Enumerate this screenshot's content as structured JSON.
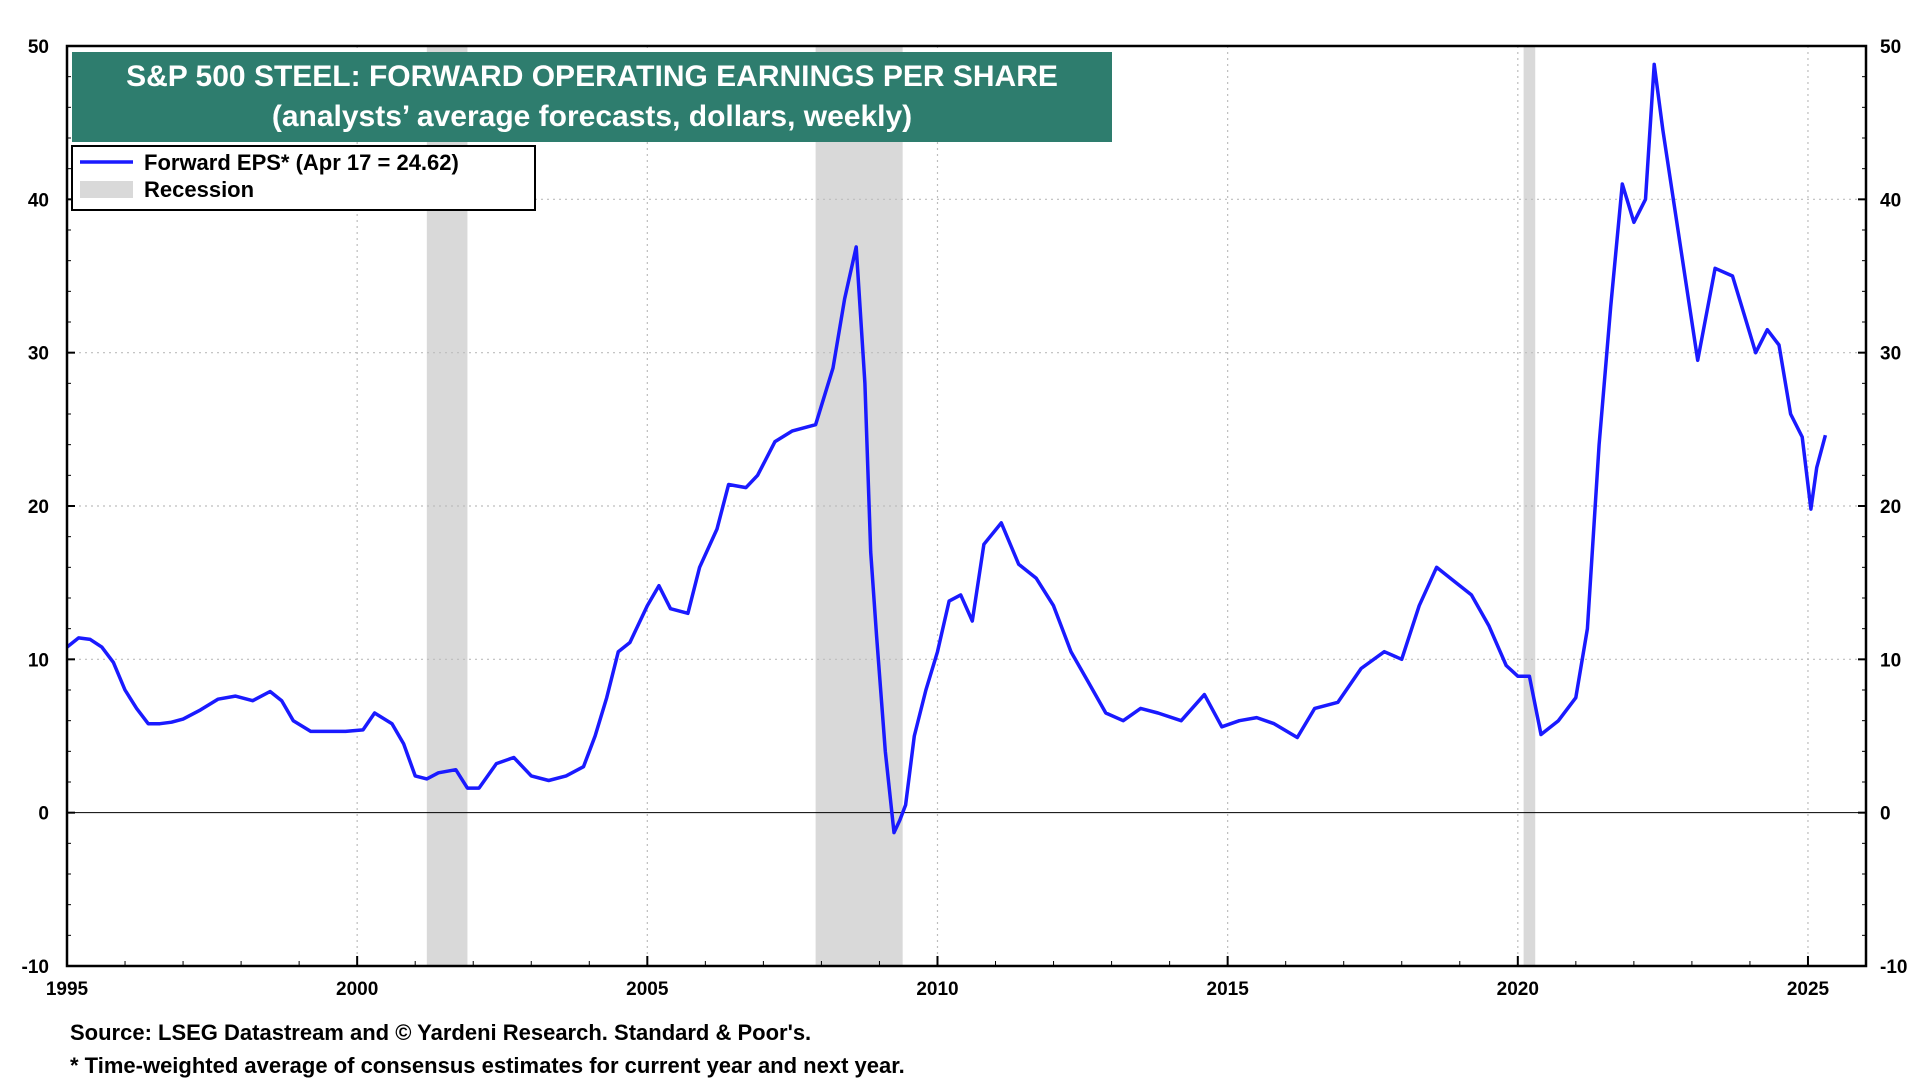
{
  "chart_data": {
    "type": "line",
    "title": "S&P 500 STEEL: FORWARD OPERATING EARNINGS PER SHARE",
    "subtitle": "(analysts’ average forecasts, dollars, weekly)",
    "xlabel": "",
    "ylabel": "",
    "xlim": [
      1995,
      2026
    ],
    "ylim": [
      -10,
      50
    ],
    "x_ticks": [
      "1995",
      "2000",
      "2005",
      "2010",
      "2015",
      "2020",
      "2025"
    ],
    "y_ticks": [
      "-10",
      "0",
      "10",
      "20",
      "30",
      "40",
      "50"
    ],
    "grid": true,
    "legend_position": "top-left",
    "colors": {
      "series": "#1a1aff",
      "recession": "#d9d9d9",
      "title_bg": "#2e7d6e"
    },
    "series": [
      {
        "name": "Forward EPS* (Apr 17 = 24.62)",
        "x": [
          1995.0,
          1995.2,
          1995.4,
          1995.6,
          1995.8,
          1996.0,
          1996.2,
          1996.4,
          1996.6,
          1996.8,
          1997.0,
          1997.3,
          1997.6,
          1997.9,
          1998.2,
          1998.5,
          1998.7,
          1998.9,
          1999.2,
          1999.5,
          1999.8,
          2000.1,
          2000.3,
          2000.6,
          2000.8,
          2001.0,
          2001.2,
          2001.4,
          2001.7,
          2001.9,
          2002.1,
          2002.4,
          2002.7,
          2003.0,
          2003.3,
          2003.6,
          2003.9,
          2004.1,
          2004.3,
          2004.5,
          2004.7,
          2005.0,
          2005.2,
          2005.4,
          2005.7,
          2005.9,
          2006.2,
          2006.4,
          2006.7,
          2006.9,
          2007.2,
          2007.5,
          2007.9,
          2008.2,
          2008.4,
          2008.6,
          2008.75,
          2008.85,
          2008.95,
          2009.1,
          2009.25,
          2009.35,
          2009.45,
          2009.6,
          2009.8,
          2010.0,
          2010.2,
          2010.4,
          2010.6,
          2010.8,
          2011.1,
          2011.4,
          2011.7,
          2012.0,
          2012.3,
          2012.6,
          2012.9,
          2013.2,
          2013.5,
          2013.8,
          2014.2,
          2014.6,
          2014.9,
          2015.2,
          2015.5,
          2015.8,
          2016.2,
          2016.5,
          2016.9,
          2017.3,
          2017.7,
          2018.0,
          2018.3,
          2018.6,
          2018.9,
          2019.2,
          2019.5,
          2019.8,
          2020.0,
          2020.2,
          2020.4,
          2020.7,
          2021.0,
          2021.2,
          2021.4,
          2021.6,
          2021.8,
          2022.0,
          2022.2,
          2022.35,
          2022.5,
          2022.7,
          2022.9,
          2023.1,
          2023.4,
          2023.7,
          2023.9,
          2024.1,
          2024.3,
          2024.5,
          2024.7,
          2024.9,
          2025.05,
          2025.15,
          2025.3
        ],
        "values": [
          10.8,
          11.4,
          11.3,
          10.8,
          9.8,
          8.0,
          6.8,
          5.8,
          5.8,
          5.9,
          6.1,
          6.7,
          7.4,
          7.6,
          7.3,
          7.9,
          7.3,
          6.0,
          5.3,
          5.3,
          5.3,
          5.4,
          6.5,
          5.8,
          4.5,
          2.4,
          2.2,
          2.6,
          2.8,
          1.6,
          1.6,
          3.2,
          3.6,
          2.4,
          2.1,
          2.4,
          3.0,
          5.0,
          7.5,
          10.5,
          11.1,
          13.5,
          14.8,
          13.3,
          13.0,
          16.0,
          18.5,
          21.4,
          21.2,
          22.0,
          24.2,
          24.9,
          25.3,
          29.0,
          33.5,
          36.9,
          28.0,
          17.0,
          11.5,
          4.0,
          -1.3,
          -0.5,
          0.5,
          5.0,
          8.0,
          10.5,
          13.8,
          14.2,
          12.5,
          17.5,
          18.9,
          16.2,
          15.3,
          13.5,
          10.5,
          8.5,
          6.5,
          6.0,
          6.8,
          6.5,
          6.0,
          7.7,
          5.6,
          6.0,
          6.2,
          5.8,
          4.9,
          6.8,
          7.2,
          9.4,
          10.5,
          10.0,
          13.5,
          16.0,
          15.1,
          14.2,
          12.2,
          9.6,
          8.9,
          8.9,
          5.1,
          6.0,
          7.5,
          12.0,
          24.0,
          33.0,
          41.0,
          38.5,
          40.0,
          48.8,
          44.5,
          39.5,
          34.5,
          29.5,
          35.5,
          35.0,
          32.5,
          30.0,
          31.5,
          30.5,
          26.0,
          24.5,
          19.8,
          22.5,
          24.62
        ]
      }
    ],
    "recessions": [
      [
        2001.2,
        2001.9
      ],
      [
        2007.9,
        2009.4
      ],
      [
        2020.1,
        2020.3
      ]
    ],
    "legend": {
      "series_label": "Forward EPS* (Apr 17 = 24.62)",
      "recession_label": "Recession"
    },
    "footnotes": [
      "Source: LSEG Datastream and © Yardeni Research. Standard & Poor's.",
      "* Time-weighted average of consensus estimates for current year and next year."
    ]
  }
}
